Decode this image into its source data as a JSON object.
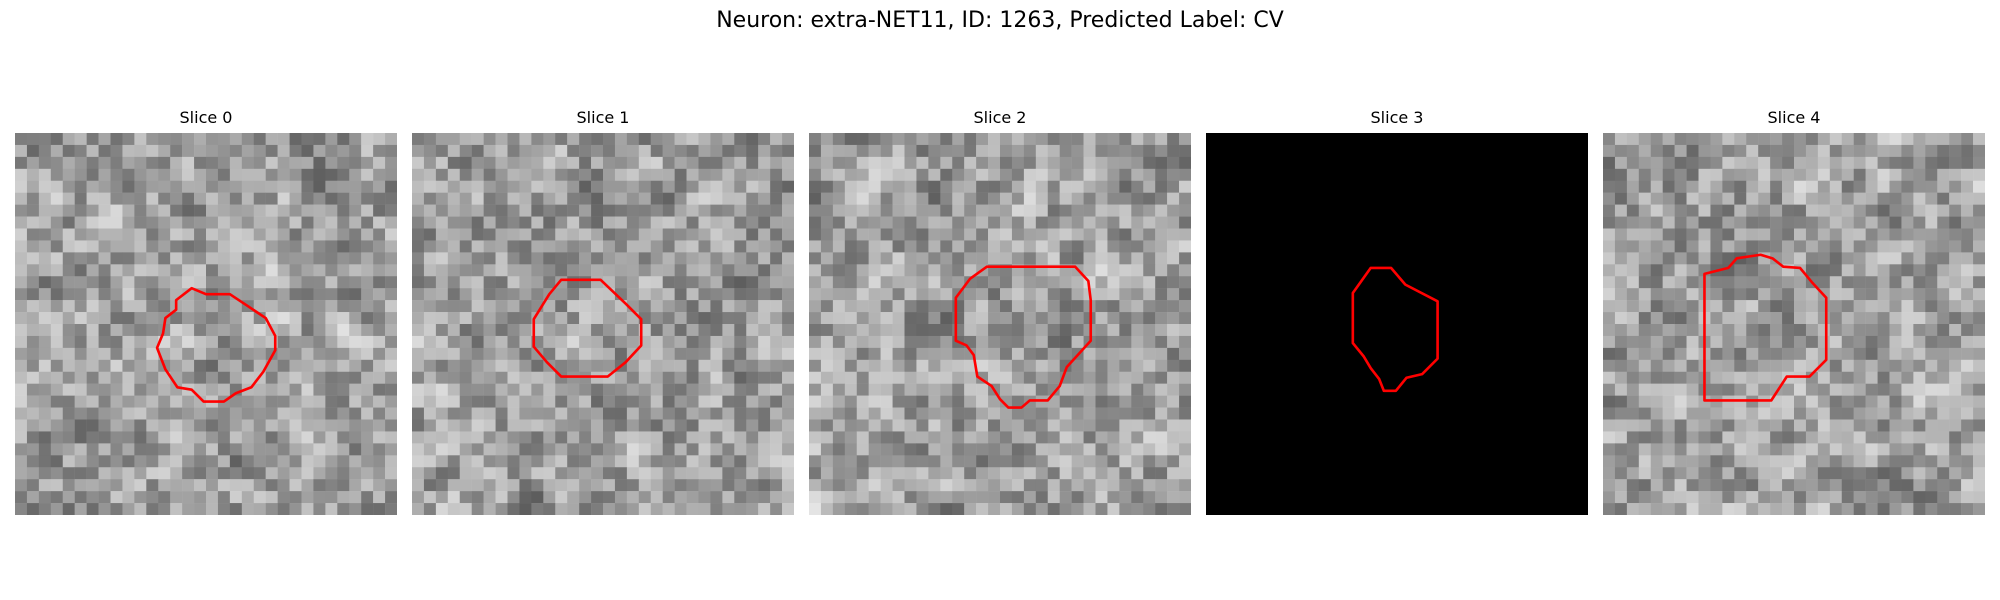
{
  "figure": {
    "title": "Neuron: extra-NET11, ID: 1263, Predicted Label: CV"
  },
  "slices": [
    {
      "title": "Slice 0",
      "background": "grayscale-noise",
      "contour_color": "#ff0000"
    },
    {
      "title": "Slice 1",
      "background": "grayscale-noise",
      "contour_color": "#ff0000"
    },
    {
      "title": "Slice 2",
      "background": "grayscale-noise",
      "contour_color": "#ff0000"
    },
    {
      "title": "Slice 3",
      "background": "black",
      "contour_color": "#ff0000"
    },
    {
      "title": "Slice 4",
      "background": "grayscale-noise",
      "contour_color": "#ff0000"
    }
  ]
}
